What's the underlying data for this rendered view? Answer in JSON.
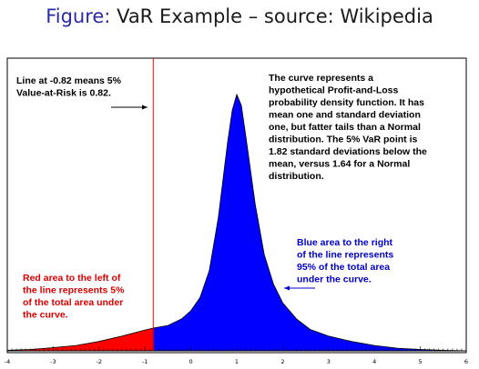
{
  "header": {
    "lead": "Figure:",
    "rest": "VaR Example – source: Wikipedia"
  },
  "chart_data": {
    "type": "area",
    "title": "",
    "xlabel": "",
    "ylabel": "",
    "xlim": [
      -4,
      6
    ],
    "x_ticks": [
      "-4",
      "-3",
      "-2",
      "-1",
      "0",
      "1",
      "2",
      "3",
      "4",
      "5",
      "6"
    ],
    "var_line_x": -0.82,
    "mean": 1,
    "colors": {
      "left_area": "#ff0000",
      "right_area": "#0000ff",
      "var_line": "#ff0000"
    },
    "series": [
      {
        "x": [
          -4,
          -3.5,
          -3,
          -2.5,
          -2,
          -1.5,
          -1,
          -0.82,
          -0.5,
          -0.2,
          0,
          0.2,
          0.4,
          0.6,
          0.8,
          0.9,
          1,
          1.1,
          1.2,
          1.4,
          1.6,
          1.8,
          2,
          2.3,
          2.6,
          3,
          3.5,
          4,
          4.5,
          5,
          5.5,
          6
        ],
        "y": [
          0.002,
          0.005,
          0.012,
          0.02,
          0.035,
          0.055,
          0.078,
          0.085,
          0.095,
          0.12,
          0.15,
          0.2,
          0.3,
          0.5,
          0.78,
          0.9,
          0.96,
          0.92,
          0.8,
          0.55,
          0.36,
          0.25,
          0.18,
          0.12,
          0.08,
          0.055,
          0.035,
          0.02,
          0.01,
          0.005,
          0.002,
          0.0
        ]
      }
    ],
    "annotations": {
      "var_line": [
        "Line at -0.82 means 5%",
        "Value-at-Risk is 0.82."
      ],
      "curve": [
        "The curve represents a",
        "hypothetical Profit-and-Loss",
        "probability density function. It has",
        "mean one and standard deviation",
        "one, but fatter tails than a Normal",
        "distribution. The 5% VaR point is",
        "1.82 standard deviations below the",
        "mean, versus 1.64 for a Normal",
        "distribution."
      ],
      "blue_area": [
        "Blue area to the right",
        "of the line represents",
        "95% of the total area",
        "under the curve."
      ],
      "red_area": [
        "Red area to the left of",
        "the line represents 5%",
        "of the total area under",
        "the curve."
      ]
    },
    "annotation_colors": {
      "var_line": "#000000",
      "curve": "#000000",
      "blue_area": "#0000cc",
      "red_area": "#dd0000"
    }
  }
}
